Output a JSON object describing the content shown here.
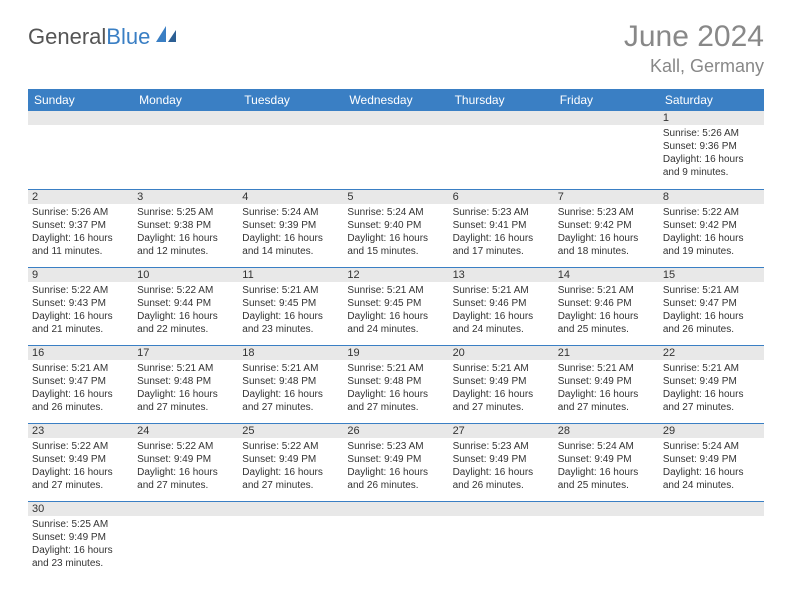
{
  "logo": {
    "text1": "General",
    "text2": "Blue"
  },
  "title": "June 2024",
  "location": "Kall, Germany",
  "colors": {
    "header_bg": "#3a7fc4",
    "header_text": "#ffffff",
    "daynum_bg": "#e8e8e8",
    "border": "#3a7fc4",
    "title_color": "#888888",
    "body_text": "#333333"
  },
  "weekdays": [
    "Sunday",
    "Monday",
    "Tuesday",
    "Wednesday",
    "Thursday",
    "Friday",
    "Saturday"
  ],
  "weeks": [
    [
      null,
      null,
      null,
      null,
      null,
      null,
      {
        "n": "1",
        "sr": "Sunrise: 5:26 AM",
        "ss": "Sunset: 9:36 PM",
        "d1": "Daylight: 16 hours",
        "d2": "and 9 minutes."
      }
    ],
    [
      {
        "n": "2",
        "sr": "Sunrise: 5:26 AM",
        "ss": "Sunset: 9:37 PM",
        "d1": "Daylight: 16 hours",
        "d2": "and 11 minutes."
      },
      {
        "n": "3",
        "sr": "Sunrise: 5:25 AM",
        "ss": "Sunset: 9:38 PM",
        "d1": "Daylight: 16 hours",
        "d2": "and 12 minutes."
      },
      {
        "n": "4",
        "sr": "Sunrise: 5:24 AM",
        "ss": "Sunset: 9:39 PM",
        "d1": "Daylight: 16 hours",
        "d2": "and 14 minutes."
      },
      {
        "n": "5",
        "sr": "Sunrise: 5:24 AM",
        "ss": "Sunset: 9:40 PM",
        "d1": "Daylight: 16 hours",
        "d2": "and 15 minutes."
      },
      {
        "n": "6",
        "sr": "Sunrise: 5:23 AM",
        "ss": "Sunset: 9:41 PM",
        "d1": "Daylight: 16 hours",
        "d2": "and 17 minutes."
      },
      {
        "n": "7",
        "sr": "Sunrise: 5:23 AM",
        "ss": "Sunset: 9:42 PM",
        "d1": "Daylight: 16 hours",
        "d2": "and 18 minutes."
      },
      {
        "n": "8",
        "sr": "Sunrise: 5:22 AM",
        "ss": "Sunset: 9:42 PM",
        "d1": "Daylight: 16 hours",
        "d2": "and 19 minutes."
      }
    ],
    [
      {
        "n": "9",
        "sr": "Sunrise: 5:22 AM",
        "ss": "Sunset: 9:43 PM",
        "d1": "Daylight: 16 hours",
        "d2": "and 21 minutes."
      },
      {
        "n": "10",
        "sr": "Sunrise: 5:22 AM",
        "ss": "Sunset: 9:44 PM",
        "d1": "Daylight: 16 hours",
        "d2": "and 22 minutes."
      },
      {
        "n": "11",
        "sr": "Sunrise: 5:21 AM",
        "ss": "Sunset: 9:45 PM",
        "d1": "Daylight: 16 hours",
        "d2": "and 23 minutes."
      },
      {
        "n": "12",
        "sr": "Sunrise: 5:21 AM",
        "ss": "Sunset: 9:45 PM",
        "d1": "Daylight: 16 hours",
        "d2": "and 24 minutes."
      },
      {
        "n": "13",
        "sr": "Sunrise: 5:21 AM",
        "ss": "Sunset: 9:46 PM",
        "d1": "Daylight: 16 hours",
        "d2": "and 24 minutes."
      },
      {
        "n": "14",
        "sr": "Sunrise: 5:21 AM",
        "ss": "Sunset: 9:46 PM",
        "d1": "Daylight: 16 hours",
        "d2": "and 25 minutes."
      },
      {
        "n": "15",
        "sr": "Sunrise: 5:21 AM",
        "ss": "Sunset: 9:47 PM",
        "d1": "Daylight: 16 hours",
        "d2": "and 26 minutes."
      }
    ],
    [
      {
        "n": "16",
        "sr": "Sunrise: 5:21 AM",
        "ss": "Sunset: 9:47 PM",
        "d1": "Daylight: 16 hours",
        "d2": "and 26 minutes."
      },
      {
        "n": "17",
        "sr": "Sunrise: 5:21 AM",
        "ss": "Sunset: 9:48 PM",
        "d1": "Daylight: 16 hours",
        "d2": "and 27 minutes."
      },
      {
        "n": "18",
        "sr": "Sunrise: 5:21 AM",
        "ss": "Sunset: 9:48 PM",
        "d1": "Daylight: 16 hours",
        "d2": "and 27 minutes."
      },
      {
        "n": "19",
        "sr": "Sunrise: 5:21 AM",
        "ss": "Sunset: 9:48 PM",
        "d1": "Daylight: 16 hours",
        "d2": "and 27 minutes."
      },
      {
        "n": "20",
        "sr": "Sunrise: 5:21 AM",
        "ss": "Sunset: 9:49 PM",
        "d1": "Daylight: 16 hours",
        "d2": "and 27 minutes."
      },
      {
        "n": "21",
        "sr": "Sunrise: 5:21 AM",
        "ss": "Sunset: 9:49 PM",
        "d1": "Daylight: 16 hours",
        "d2": "and 27 minutes."
      },
      {
        "n": "22",
        "sr": "Sunrise: 5:21 AM",
        "ss": "Sunset: 9:49 PM",
        "d1": "Daylight: 16 hours",
        "d2": "and 27 minutes."
      }
    ],
    [
      {
        "n": "23",
        "sr": "Sunrise: 5:22 AM",
        "ss": "Sunset: 9:49 PM",
        "d1": "Daylight: 16 hours",
        "d2": "and 27 minutes."
      },
      {
        "n": "24",
        "sr": "Sunrise: 5:22 AM",
        "ss": "Sunset: 9:49 PM",
        "d1": "Daylight: 16 hours",
        "d2": "and 27 minutes."
      },
      {
        "n": "25",
        "sr": "Sunrise: 5:22 AM",
        "ss": "Sunset: 9:49 PM",
        "d1": "Daylight: 16 hours",
        "d2": "and 27 minutes."
      },
      {
        "n": "26",
        "sr": "Sunrise: 5:23 AM",
        "ss": "Sunset: 9:49 PM",
        "d1": "Daylight: 16 hours",
        "d2": "and 26 minutes."
      },
      {
        "n": "27",
        "sr": "Sunrise: 5:23 AM",
        "ss": "Sunset: 9:49 PM",
        "d1": "Daylight: 16 hours",
        "d2": "and 26 minutes."
      },
      {
        "n": "28",
        "sr": "Sunrise: 5:24 AM",
        "ss": "Sunset: 9:49 PM",
        "d1": "Daylight: 16 hours",
        "d2": "and 25 minutes."
      },
      {
        "n": "29",
        "sr": "Sunrise: 5:24 AM",
        "ss": "Sunset: 9:49 PM",
        "d1": "Daylight: 16 hours",
        "d2": "and 24 minutes."
      }
    ],
    [
      {
        "n": "30",
        "sr": "Sunrise: 5:25 AM",
        "ss": "Sunset: 9:49 PM",
        "d1": "Daylight: 16 hours",
        "d2": "and 23 minutes."
      },
      null,
      null,
      null,
      null,
      null,
      null
    ]
  ]
}
